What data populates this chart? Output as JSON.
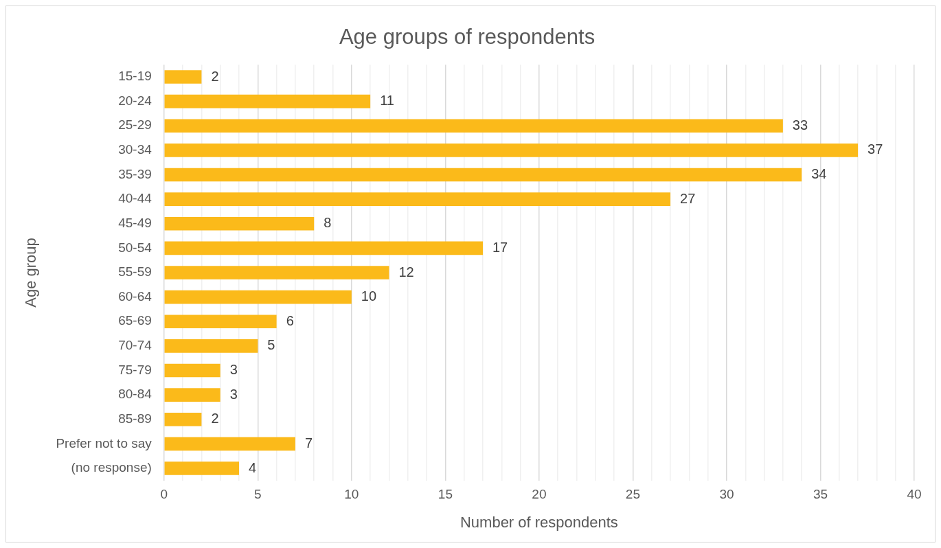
{
  "chart_data": {
    "type": "bar",
    "orientation": "horizontal",
    "title": "Age groups of respondents",
    "xlabel": "Number of respondents",
    "ylabel": "Age group",
    "categories": [
      "15-19",
      "20-24",
      "25-29",
      "30-34",
      "35-39",
      "40-44",
      "45-49",
      "50-54",
      "55-59",
      "60-64",
      "65-69",
      "70-74",
      "75-79",
      "80-84",
      "85-89",
      "Prefer not to say",
      "(no response)"
    ],
    "values": [
      2,
      11,
      33,
      37,
      34,
      27,
      8,
      17,
      12,
      10,
      6,
      5,
      3,
      3,
      2,
      7,
      4
    ],
    "color": "#fbba1a",
    "xlim": [
      0,
      40
    ],
    "xticks": [
      0,
      {
        "value": 1,
        "label": null
      },
      {
        "value": 2,
        "label": null
      },
      {
        "value": 3,
        "label": null
      },
      {
        "value": 4,
        "label": null
      },
      5,
      {
        "value": 6,
        "label": null
      },
      {
        "value": 7,
        "label": null
      },
      {
        "value": 8,
        "label": null
      },
      {
        "value": 9,
        "label": null
      },
      10,
      {
        "value": 11,
        "label": null
      },
      {
        "value": 12,
        "label": null
      },
      {
        "value": 13,
        "label": null
      },
      {
        "value": 14,
        "label": null
      },
      15,
      {
        "value": 16,
        "label": null
      },
      {
        "value": 17,
        "label": null
      },
      {
        "value": 18,
        "label": null
      },
      {
        "value": 19,
        "label": null
      },
      20,
      {
        "value": 21,
        "label": null
      },
      {
        "value": 22,
        "label": null
      },
      {
        "value": 23,
        "label": null
      },
      {
        "value": 24,
        "label": null
      },
      25,
      {
        "value": 26,
        "label": null
      },
      {
        "value": 27,
        "label": null
      },
      {
        "value": 28,
        "label": null
      },
      {
        "value": 29,
        "label": null
      },
      30,
      {
        "value": 31,
        "label": null
      },
      {
        "value": 32,
        "label": null
      },
      {
        "value": 33,
        "label": null
      },
      {
        "value": 34,
        "label": null
      },
      35,
      {
        "value": 36,
        "label": null
      },
      {
        "value": 37,
        "label": null
      },
      {
        "value": 38,
        "label": null
      },
      {
        "value": 39,
        "label": null
      },
      40
    ],
    "grid": "x",
    "data_labels": true,
    "legend": false
  }
}
